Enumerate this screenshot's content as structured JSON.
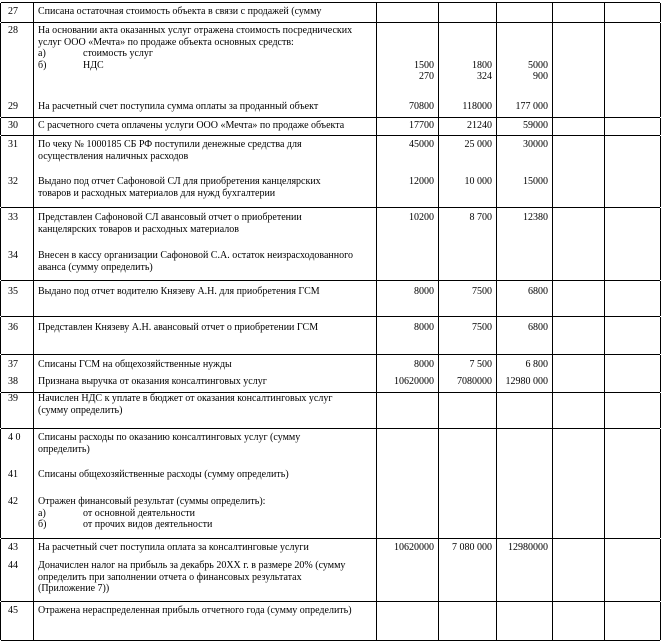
{
  "rows": [
    {
      "num": "27",
      "text": [
        "Списана остаточная стоимость объекта в связи с продажей (сумму"
      ],
      "values": [
        [],
        [],
        []
      ]
    },
    {
      "num": "28",
      "text": [
        "На основании акта оказанных услуг отражена стоимость посреднических",
        "услуг ООО «Мечта» по продаже объекта основных средств:",
        {
          "m": "а)",
          "t": "стоимость услуг"
        },
        {
          "m": "б)",
          "t": "НДС"
        }
      ],
      "values": [
        [
          "",
          "",
          "",
          "1500",
          "270"
        ],
        [
          "",
          "",
          "",
          "1800",
          "324"
        ],
        [
          "",
          "",
          "",
          "5000",
          "900"
        ]
      ]
    },
    {
      "num": "29",
      "text": [
        "На расчетный счет поступила сумма оплаты за проданный объект"
      ],
      "values": [
        [
          "70800"
        ],
        [
          "118000"
        ],
        [
          "177 000"
        ]
      ]
    },
    {
      "num": "30",
      "text": [
        "С расчетного счета оплачены услуги ООО «Мечта» по продаже объекта"
      ],
      "values": [
        [
          "17700"
        ],
        [
          "21240"
        ],
        [
          "59000"
        ]
      ]
    },
    {
      "num": "31",
      "text": [
        "По чеку № 1000185 СБ РФ поступили денежные средства для",
        "осуществления наличных расходов"
      ],
      "values": [
        [
          "45000"
        ],
        [
          "25 000"
        ],
        [
          "30000"
        ]
      ]
    },
    {
      "num": "32",
      "text": [
        "Выдано под отчет Сафоновой СЛ для приобретения канцелярских",
        "товаров и расходных материалов для нужд бухгалтерии"
      ],
      "values": [
        [
          "12000"
        ],
        [
          "10 000"
        ],
        [
          "15000"
        ]
      ]
    },
    {
      "num": "33",
      "text": [
        "Представлен Сафоновой СЛ авансовый отчет о приобретении",
        "канцелярских товаров и расходных материалов"
      ],
      "values": [
        [
          "10200"
        ],
        [
          "8 700"
        ],
        [
          "12380"
        ]
      ]
    },
    {
      "num": "34",
      "text": [
        "Внесен в кассу организации Сафоновой С.А. остаток неизрасходованного",
        "аванса (сумму определить)"
      ],
      "values": [
        [],
        [],
        []
      ]
    },
    {
      "num": "35",
      "text": [
        "Выдано под отчет водителю Князеву А.Н. для приобретения ГСМ"
      ],
      "values": [
        [
          "8000"
        ],
        [
          "7500"
        ],
        [
          "6800"
        ]
      ]
    },
    {
      "num": "36",
      "text": [
        "Представлен Князеву А.Н. авансовый отчет о приобретении ГСМ"
      ],
      "values": [
        [
          "8000"
        ],
        [
          "7500"
        ],
        [
          "6800"
        ]
      ]
    },
    {
      "num": "37",
      "text": [
        "Списаны ГСМ на общехозяйственные нужды"
      ],
      "values": [
        [
          "8000"
        ],
        [
          "7 500"
        ],
        [
          "6 800"
        ]
      ]
    },
    {
      "num": "38",
      "text": [
        "Признана выручка от оказания консалтинговых услуг"
      ],
      "values": [
        [
          "10620000"
        ],
        [
          "7080000"
        ],
        [
          "12980 000"
        ]
      ]
    },
    {
      "num": "39",
      "text": [
        "Начислен НДС к уплате в бюджет от оказания консалтинговых услуг",
        "(сумму определить)"
      ],
      "values": [
        [],
        [],
        []
      ]
    },
    {
      "num": "4 0",
      "text": [
        "Списаны расходы по оказанию консалтинговых услуг (сумму",
        "определить)"
      ],
      "values": [
        [],
        [],
        []
      ]
    },
    {
      "num": "41",
      "text": [
        "Списаны общехозяйственные расходы (сумму определить)"
      ],
      "values": [
        [],
        [],
        []
      ]
    },
    {
      "num": "42",
      "text": [
        "Отражен финансовый результат (суммы определить):",
        {
          "m": "а)",
          "t": "от основной деятельности"
        },
        {
          "m": "б)",
          "t": "от прочих видов деятельности"
        }
      ],
      "values": [
        [],
        [],
        []
      ]
    },
    {
      "num": "43",
      "text": [
        "На расчетный счет поступила оплата за консалтинговые услуги"
      ],
      "values": [
        [
          "10620000"
        ],
        [
          "7 080 000"
        ],
        [
          "12980000"
        ]
      ]
    },
    {
      "num": "44",
      "text": [
        "Доначислен налог на прибыль за декабрь 20ХХ г. в размере 20% (сумму",
        "определить при заполнении отчета о финансовых результатах",
        "(Приложение 7))"
      ],
      "values": [
        [],
        [],
        []
      ]
    },
    {
      "num": "45",
      "text": [
        "Отражена нераспределенная прибыль отчетного года (сумму определить)"
      ],
      "values": [
        [],
        [],
        []
      ]
    }
  ]
}
